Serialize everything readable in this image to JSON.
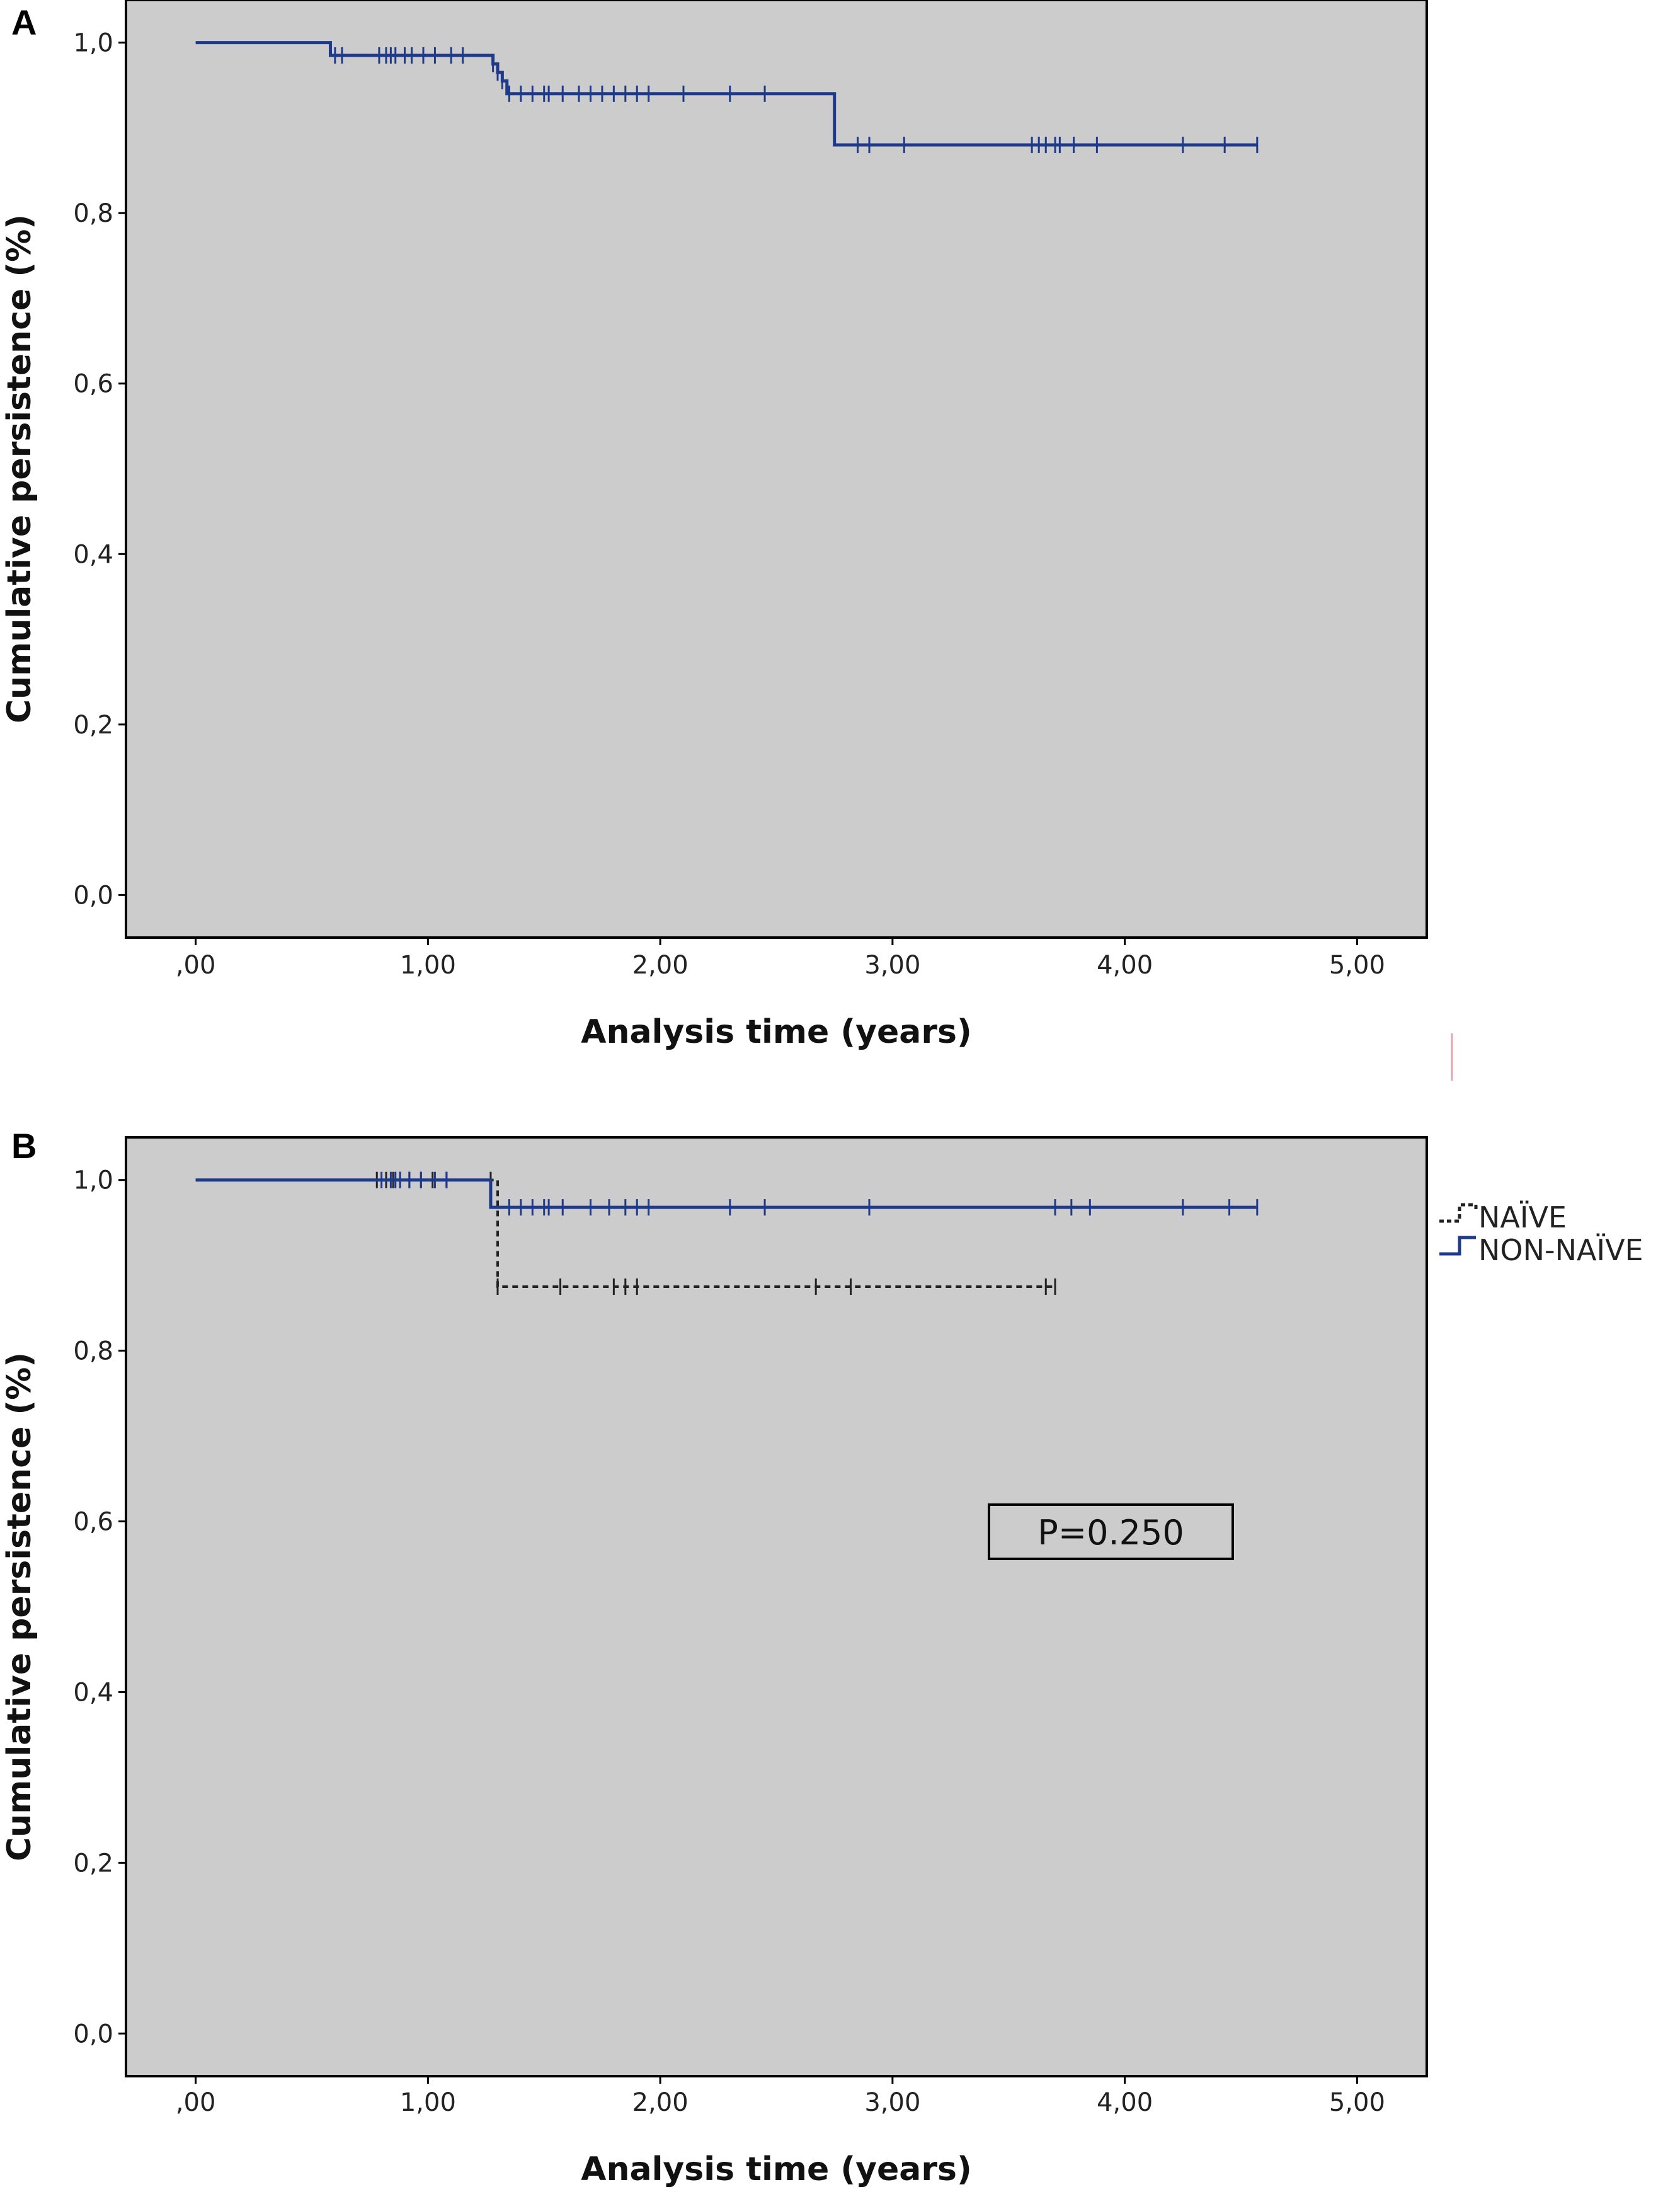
{
  "chart_data": [
    {
      "type": "line",
      "panel_label": "A",
      "xlabel": "Analysis time (years)",
      "ylabel": "Cumulative persistence (%)",
      "xlim": [
        -0.3,
        5.3
      ],
      "ylim": [
        -0.05,
        1.05
      ],
      "x_ticks": [
        0,
        1,
        2,
        3,
        4,
        5
      ],
      "x_tick_labels": [
        ",00",
        "1,00",
        "2,00",
        "3,00",
        "4,00",
        "5,00"
      ],
      "y_ticks": [
        0,
        0.2,
        0.4,
        0.6,
        0.8,
        1.0
      ],
      "y_tick_labels": [
        "0,0",
        "0,2",
        "0,4",
        "0,6",
        "0,8",
        "1,0"
      ],
      "grid": false,
      "background": "#cccccc",
      "series": [
        {
          "name": "",
          "color": "#1f3a8a",
          "dashed": false,
          "steps": [
            [
              0,
              1.0
            ],
            [
              0.58,
              0.985
            ],
            [
              1.28,
              0.975
            ],
            [
              1.3,
              0.965
            ],
            [
              1.32,
              0.955
            ],
            [
              1.34,
              0.94
            ],
            [
              2.75,
              0.88
            ],
            [
              4.57,
              0.88
            ]
          ],
          "censored": [
            0.6,
            0.63,
            0.79,
            0.82,
            0.84,
            0.86,
            0.9,
            0.93,
            0.98,
            1.03,
            1.1,
            1.15,
            1.28,
            1.3,
            1.32,
            1.35,
            1.4,
            1.45,
            1.5,
            1.52,
            1.58,
            1.65,
            1.7,
            1.75,
            1.8,
            1.85,
            1.9,
            1.95,
            2.1,
            2.3,
            2.45,
            2.85,
            2.9,
            3.05,
            3.6,
            3.63,
            3.66,
            3.7,
            3.72,
            3.78,
            3.88,
            4.25,
            4.43,
            4.57
          ]
        }
      ]
    },
    {
      "type": "line",
      "panel_label": "B",
      "xlabel": "Analysis time (years)",
      "ylabel": "Cumulative persistence (%)",
      "xlim": [
        -0.3,
        5.3
      ],
      "ylim": [
        -0.05,
        1.05
      ],
      "x_ticks": [
        0,
        1,
        2,
        3,
        4,
        5
      ],
      "x_tick_labels": [
        ",00",
        "1,00",
        "2,00",
        "3,00",
        "4,00",
        "5,00"
      ],
      "y_ticks": [
        0,
        0.2,
        0.4,
        0.6,
        0.8,
        1.0
      ],
      "y_tick_labels": [
        "0,0",
        "0,2",
        "0,4",
        "0,6",
        "0,8",
        "1,0"
      ],
      "grid": false,
      "background": "#cccccc",
      "legend_position": "right",
      "annotation": "P=0.250",
      "series": [
        {
          "name": "NAÏVE",
          "color": "#222222",
          "dashed": true,
          "steps": [
            [
              0,
              1.0
            ],
            [
              1.3,
              0.875
            ],
            [
              3.7,
              0.875
            ]
          ],
          "censored": [
            0.78,
            0.82,
            0.85,
            0.88,
            0.92,
            0.97,
            1.02,
            1.08,
            1.27,
            1.3,
            1.57,
            1.8,
            1.85,
            1.9,
            2.67,
            2.82,
            3.66,
            3.7
          ]
        },
        {
          "name": "NON-NAÏVE",
          "color": "#1f3a8a",
          "dashed": false,
          "steps": [
            [
              0,
              1.0
            ],
            [
              1.27,
              0.968
            ],
            [
              4.57,
              0.968
            ]
          ],
          "censored": [
            0.8,
            0.84,
            0.86,
            0.88,
            0.92,
            0.97,
            1.03,
            1.08,
            1.35,
            1.4,
            1.45,
            1.5,
            1.52,
            1.58,
            1.7,
            1.78,
            1.85,
            1.9,
            1.95,
            2.3,
            2.45,
            2.9,
            3.7,
            3.77,
            3.85,
            4.25,
            4.45,
            4.57
          ]
        }
      ]
    }
  ]
}
